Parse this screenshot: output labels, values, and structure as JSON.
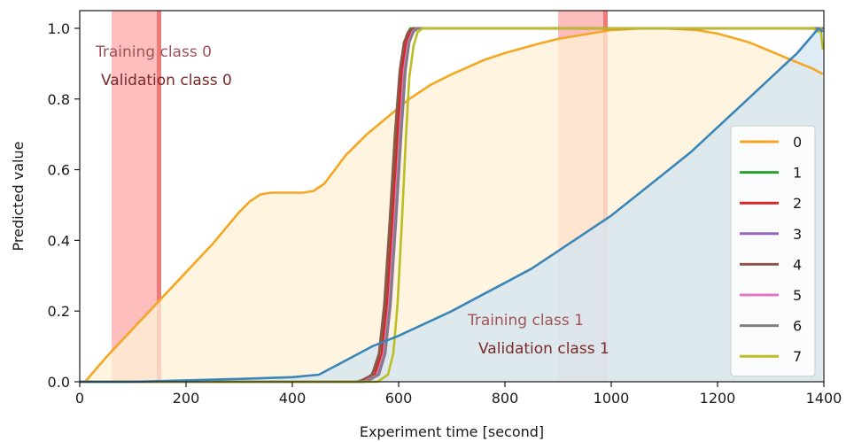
{
  "chart_data": {
    "type": "line",
    "xlabel": "Experiment time [second]",
    "ylabel": "Predicted value",
    "xlim": [
      0,
      1400
    ],
    "ylim": [
      0,
      1.05
    ],
    "x_ticks": [
      0,
      200,
      400,
      600,
      800,
      1000,
      1200,
      1400
    ],
    "y_ticks": [
      0.0,
      0.2,
      0.4,
      0.6,
      0.8,
      1.0
    ],
    "x_tick_labels": [
      "0",
      "200",
      "400",
      "600",
      "800",
      "1000",
      "1200",
      "1400"
    ],
    "y_tick_labels": [
      "0.0",
      "0.2",
      "0.4",
      "0.6",
      "0.8",
      "1.0"
    ],
    "grid": false,
    "legend_position": "right",
    "shaded_bands": [
      {
        "x0": 60,
        "x1": 150,
        "color": "#ffb3b3",
        "edge_x": 145,
        "edge_color": "#f07a7a"
      },
      {
        "x0": 900,
        "x1": 990,
        "color": "#ffb3b3",
        "edge_x": 985,
        "edge_color": "#f07a7a"
      }
    ],
    "annotations": [
      {
        "text": "Training class 0",
        "x": 30,
        "y": 0.935,
        "color": "#a0525a"
      },
      {
        "text": "Validation class 0",
        "x": 40,
        "y": 0.855,
        "color": "#7a2a2a"
      },
      {
        "text": "Training class 1",
        "x": 730,
        "y": 0.175,
        "color": "#a0525a"
      },
      {
        "text": "Validation class 1",
        "x": 750,
        "y": 0.095,
        "color": "#7a2a2a"
      }
    ],
    "series": [
      {
        "name": "0",
        "color": "#f5a623",
        "fill": "#fff0d6",
        "x": [
          10,
          50,
          100,
          150,
          200,
          250,
          300,
          320,
          340,
          360,
          380,
          400,
          420,
          440,
          460,
          480,
          500,
          540,
          580,
          620,
          660,
          700,
          760,
          800,
          860,
          900,
          960,
          1000,
          1060,
          1100,
          1160,
          1200,
          1260,
          1300,
          1340,
          1380,
          1398
        ],
        "y": [
          0.0,
          0.07,
          0.15,
          0.23,
          0.31,
          0.39,
          0.48,
          0.51,
          0.53,
          0.535,
          0.535,
          0.535,
          0.535,
          0.54,
          0.56,
          0.6,
          0.64,
          0.7,
          0.75,
          0.8,
          0.84,
          0.87,
          0.91,
          0.93,
          0.955,
          0.97,
          0.985,
          0.995,
          1.0,
          1.0,
          0.995,
          0.985,
          0.96,
          0.935,
          0.91,
          0.885,
          0.87
        ]
      },
      {
        "name": "1",
        "color": "#2ca02c",
        "x": [
          0,
          520,
          545,
          560,
          570,
          580,
          590,
          600,
          608,
          615,
          622,
          630,
          640,
          1400
        ],
        "y": [
          0.0,
          0.0,
          0.01,
          0.05,
          0.14,
          0.32,
          0.58,
          0.8,
          0.92,
          0.98,
          1.0,
          1.0,
          1.0,
          1.0
        ]
      },
      {
        "name": "2",
        "color": "#d62728",
        "x": [
          0,
          530,
          555,
          568,
          578,
          588,
          598,
          606,
          614,
          622,
          630,
          640,
          1400
        ],
        "y": [
          0.0,
          0.0,
          0.02,
          0.08,
          0.22,
          0.45,
          0.7,
          0.88,
          0.96,
          0.99,
          1.0,
          1.0,
          1.0
        ]
      },
      {
        "name": "3",
        "color": "#9467bd",
        "x": [
          0,
          540,
          563,
          575,
          585,
          595,
          605,
          613,
          620,
          628,
          636,
          645,
          1400
        ],
        "y": [
          0.0,
          0.0,
          0.02,
          0.08,
          0.22,
          0.45,
          0.7,
          0.88,
          0.96,
          0.99,
          1.0,
          1.0,
          1.0
        ]
      },
      {
        "name": "4",
        "color": "#8c564b",
        "x": [
          0,
          525,
          550,
          563,
          573,
          583,
          593,
          602,
          610,
          618,
          626,
          636,
          1400
        ],
        "y": [
          0.0,
          0.0,
          0.02,
          0.08,
          0.22,
          0.45,
          0.7,
          0.88,
          0.96,
          0.99,
          1.0,
          1.0,
          1.0
        ]
      },
      {
        "name": "5",
        "color": "#e377c2",
        "x": [
          0,
          535,
          560,
          572,
          582,
          592,
          602,
          610,
          618,
          626,
          634,
          644,
          1400
        ],
        "y": [
          0.0,
          0.0,
          0.02,
          0.08,
          0.22,
          0.45,
          0.7,
          0.88,
          0.96,
          0.99,
          1.0,
          1.0,
          1.0
        ]
      },
      {
        "name": "6",
        "color": "#7f7f7f",
        "x": [
          0,
          538,
          562,
          574,
          584,
          594,
          604,
          612,
          620,
          628,
          636,
          646,
          1400
        ],
        "y": [
          0.0,
          0.0,
          0.02,
          0.08,
          0.22,
          0.45,
          0.7,
          0.88,
          0.96,
          0.99,
          1.0,
          1.0,
          1.0
        ]
      },
      {
        "name": "7",
        "color": "#bcbd22",
        "x": [
          0,
          560,
          580,
          590,
          598,
          606,
          614,
          620,
          628,
          636,
          645,
          660,
          1380,
          1390,
          1394,
          1398
        ],
        "y": [
          0.0,
          0.0,
          0.02,
          0.08,
          0.22,
          0.45,
          0.7,
          0.86,
          0.95,
          0.99,
          1.0,
          1.0,
          1.0,
          0.99,
          1.0,
          0.94
        ]
      },
      {
        "name": "",
        "color": "#3a86b8",
        "fill": "#d3e6f3",
        "x": [
          0,
          100,
          200,
          300,
          400,
          450,
          500,
          550,
          600,
          650,
          700,
          750,
          800,
          850,
          900,
          950,
          1000,
          1050,
          1100,
          1150,
          1200,
          1250,
          1300,
          1350,
          1390,
          1398
        ],
        "y": [
          0.0,
          0.0,
          0.004,
          0.008,
          0.013,
          0.02,
          0.06,
          0.1,
          0.13,
          0.165,
          0.2,
          0.24,
          0.28,
          0.32,
          0.37,
          0.42,
          0.47,
          0.53,
          0.59,
          0.65,
          0.72,
          0.79,
          0.86,
          0.93,
          1.0,
          0.99
        ]
      }
    ],
    "legend": [
      "0",
      "1",
      "2",
      "3",
      "4",
      "5",
      "6",
      "7"
    ]
  }
}
